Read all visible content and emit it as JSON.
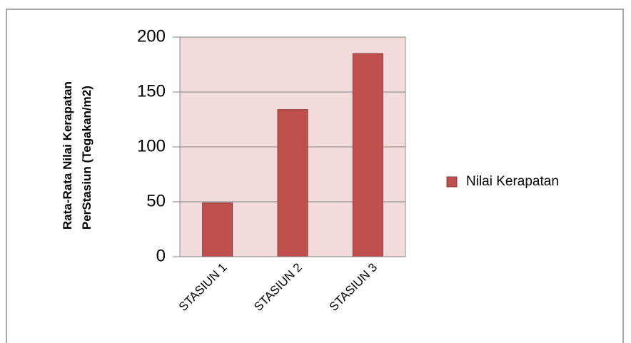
{
  "chart_data": {
    "type": "bar",
    "categories": [
      "STASIUN 1",
      "STASIUN 2",
      "STASIUN 3"
    ],
    "series": [
      {
        "name": "Nilai Kerapatan",
        "values": [
          49,
          134,
          185
        ],
        "color": "#c0504d"
      }
    ],
    "ylabel": "Rata-Rata Nilai Kerapatan PerStasiun (Tegakan/m2)",
    "ylabel_lines": [
      "Rata-Rata Nilai Kerapatan",
      "PerStasiun (Tegakan/m2)"
    ],
    "ylim": [
      0,
      200
    ],
    "yticks": [
      "0",
      "50",
      "100",
      "150",
      "200"
    ],
    "plot_background": "#f2dcdb",
    "grid": true,
    "legend_position": "right"
  }
}
